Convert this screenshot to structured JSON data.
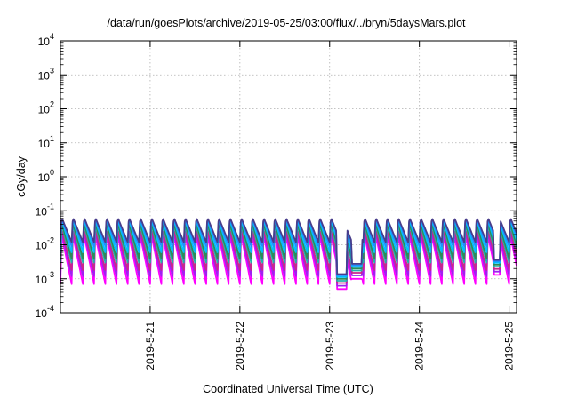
{
  "chart_data": {
    "type": "line",
    "title": "/data/run/goesPlots/archive/2019-05-25/03:00/flux/../bryn/5daysMars.plot",
    "xlabel": "Coordinated Universal Time (UTC)",
    "ylabel": "cGy/day",
    "y_scale": "log",
    "ylim": [
      "1e-4",
      "1e4"
    ],
    "y_ticks": [
      {
        "base": "10",
        "exp": "-4"
      },
      {
        "base": "10",
        "exp": "-3"
      },
      {
        "base": "10",
        "exp": "-2"
      },
      {
        "base": "10",
        "exp": "-1"
      },
      {
        "base": "10",
        "exp": "0"
      },
      {
        "base": "10",
        "exp": "1"
      },
      {
        "base": "10",
        "exp": "2"
      },
      {
        "base": "10",
        "exp": "3"
      },
      {
        "base": "10",
        "exp": "4"
      }
    ],
    "xlim": [
      "2019-05-20 00:00",
      "2019-05-25 02:00"
    ],
    "x_ticks": [
      "2019-5-21",
      "2019-5-22",
      "2019-5-23",
      "2019-5-24",
      "2019-5-25"
    ],
    "grid": true,
    "cycle_hours": 3,
    "gaps": [
      {
        "start": "2019-05-23 02:00",
        "end": "2019-05-23 04:30",
        "level": 0.0005
      },
      {
        "start": "2019-05-23 06:00",
        "end": "2019-05-23 08:30",
        "level": 0.001
      },
      {
        "start": "2019-05-24 20:00",
        "end": "2019-05-24 21:30",
        "level": 0.0013
      }
    ],
    "series": [
      {
        "color": "#ff00ff",
        "peak": 0.02,
        "trough": 0.0007
      },
      {
        "color": "#a020f0",
        "peak": 0.025,
        "trough": 0.0012
      },
      {
        "color": "#c8288c",
        "peak": 0.03,
        "trough": 0.0018
      },
      {
        "color": "#20b2aa",
        "peak": 0.04,
        "trough": 0.003
      },
      {
        "color": "#2e8b57",
        "peak": 0.045,
        "trough": 0.004
      },
      {
        "color": "#00bfff",
        "peak": 0.055,
        "trough": 0.006
      },
      {
        "color": "#1e90ff",
        "peak": 0.06,
        "trough": 0.009
      },
      {
        "color": "#483d8b",
        "peak": 0.065,
        "trough": 0.012
      }
    ]
  }
}
